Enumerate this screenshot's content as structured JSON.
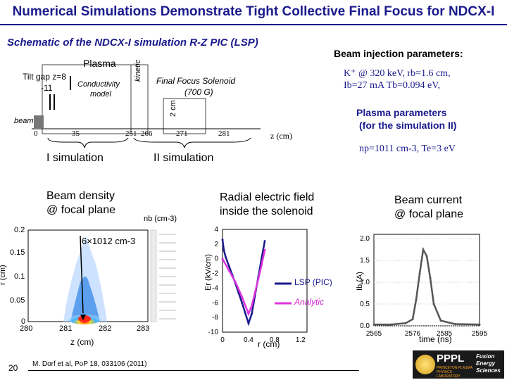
{
  "slide": {
    "title": "Numerical Simulations Demonstrate Tight Collective Final Focus for NDCX-I",
    "subtitle": "Schematic of the NDCX-I simulation R-Z PIC (LSP)",
    "page_number": "20",
    "citation": "M. Dorf et al, PoP 18, 033106 (2011)"
  },
  "schematic": {
    "plasma_label": "Plasma",
    "tilt_gap": "Tilt gap  z=8",
    "tilt_gap_2": "-11",
    "conductivity": "Conductivity",
    "model": "model",
    "kinetic": "kinetic",
    "solenoid_1": "Final Focus Solenoid",
    "solenoid_2": "(700 G)",
    "two_cm": "2 cm",
    "beam": "beam",
    "z0": "0",
    "z35": "35",
    "z251": "251",
    "z266": "266",
    "z271": "271",
    "z281": "281",
    "zaxis": "z (cm)",
    "sim1": "I simulation",
    "sim2": "II simulation"
  },
  "params": {
    "injection_header": "Beam injection parameters:",
    "injection_line1": "K⁺ @ 320 keV, rb=1.6 cm,",
    "injection_line2": "Ib=27 mA Tb=0.094 eV,",
    "plasma_header1": "Plasma parameters",
    "plasma_header2": "(for the simulation II)",
    "plasma_line": "np=1011 cm-3, Te=3 eV"
  },
  "density_panel": {
    "heading1": "Beam density",
    "heading2": "@ focal plane",
    "colorbar_label": "nb (cm-3)",
    "peak_label": "6×1012 cm-3",
    "ylabel": "r (cm)",
    "xlabel": "z (cm)",
    "yticks": [
      "0.2",
      "0.15",
      "0.1",
      "0.05",
      "0"
    ],
    "xticks": [
      "280",
      "281",
      "282",
      "283"
    ]
  },
  "efield_panel": {
    "heading1": "Radial electric field",
    "heading2": "inside the solenoid",
    "ylabel": "Er (kV/cm)",
    "xlabel": "r (cm)",
    "yticks": [
      "4",
      "2",
      "0",
      "-2",
      "-4",
      "-6",
      "-8",
      "-10"
    ],
    "xticks": [
      "0",
      "0.4",
      "0.8",
      "1.2"
    ],
    "legend_lsp": "LSP (PIC)",
    "legend_analytic": "Analytic"
  },
  "current_panel": {
    "heading1": "Beam current",
    "heading2": "@ focal plane",
    "ylabel": "Ib (A)",
    "xlabel": "time (ns)",
    "yticks": [
      "2.0",
      "1.5",
      "1.0",
      "0.5",
      "0.0"
    ],
    "xticks": [
      "2565",
      "2576",
      "2585",
      "2595"
    ]
  },
  "logo": {
    "pppl": "PPPL",
    "pppl_sub": "PRINCETON PLASMA PHYSICS LABORATORY",
    "fes": "Fusion Energy Sciences"
  },
  "chart_data": [
    {
      "type": "line",
      "xlabel": "r (cm)",
      "ylabel": "Er (kV/cm)",
      "xlim": [
        0,
        1.3
      ],
      "ylim": [
        -10,
        4
      ],
      "series": [
        {
          "name": "LSP (PIC)",
          "x": [
            0.0,
            0.02,
            0.05,
            0.1,
            0.15,
            0.2,
            0.25,
            0.3,
            0.35,
            0.4,
            0.45,
            0.5,
            0.55,
            0.6,
            0.65
          ],
          "y": [
            2.6,
            1.2,
            0.2,
            -1.0,
            -2.2,
            -3.4,
            -4.7,
            -6.0,
            -7.4,
            -8.8,
            -7.5,
            -5.0,
            -2.5,
            0.0,
            2.4
          ]
        },
        {
          "name": "Analytic",
          "x": [
            0.0,
            0.1,
            0.2,
            0.3,
            0.4,
            0.45,
            0.5,
            0.55,
            0.6,
            0.65
          ],
          "y": [
            0.0,
            -1.6,
            -3.2,
            -5.2,
            -7.5,
            -6.4,
            -4.6,
            -2.8,
            -0.9,
            1.2
          ]
        }
      ]
    },
    {
      "type": "line",
      "xlabel": "time (ns)",
      "ylabel": "Ib (A)",
      "xlim": [
        2565,
        2595
      ],
      "ylim": [
        0,
        2.1
      ],
      "series": [
        {
          "x": [
            2565,
            2570,
            2574,
            2576,
            2577,
            2578,
            2579,
            2580,
            2581,
            2582,
            2584,
            2588,
            2595
          ],
          "y": [
            0.03,
            0.03,
            0.06,
            0.15,
            0.6,
            1.2,
            1.75,
            1.6,
            1.1,
            0.5,
            0.12,
            0.04,
            0.03
          ]
        }
      ]
    }
  ]
}
